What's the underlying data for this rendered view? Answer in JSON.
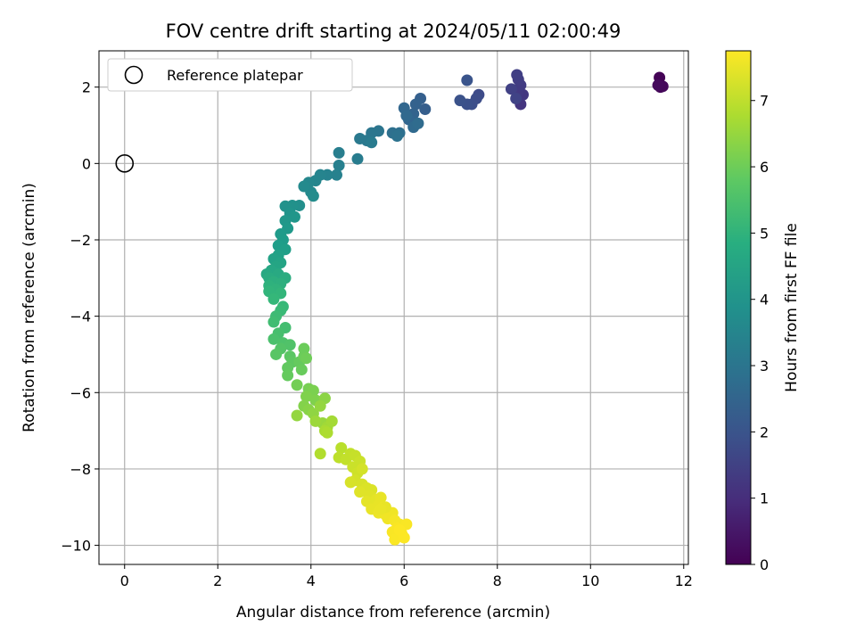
{
  "chart_data": {
    "type": "scatter",
    "title": "FOV centre drift starting at 2024/05/11 02:00:49",
    "xlabel": "Angular distance from reference (arcmin)",
    "ylabel": "Rotation from reference (arcmin)",
    "xlim": [
      -0.55,
      12.1
    ],
    "ylim": [
      -10.5,
      2.95
    ],
    "xticks": [
      0,
      2,
      4,
      6,
      8,
      10,
      12
    ],
    "yticks": [
      -10,
      -8,
      -6,
      -4,
      -2,
      0,
      2
    ],
    "grid": true,
    "legend": {
      "placement": "top-left",
      "entries": [
        {
          "label": "Reference platepar",
          "marker": "open-circle"
        }
      ]
    },
    "reference_point": {
      "x": 0,
      "y": 0
    },
    "colorbar": {
      "label": "Hours from first FF file",
      "min": 0,
      "max": 7.75,
      "ticks": [
        0,
        1,
        2,
        3,
        4,
        5,
        6,
        7
      ],
      "colormap": "viridis"
    },
    "points": [
      {
        "x": 11.48,
        "y": 2.25,
        "c": 0.05
      },
      {
        "x": 11.5,
        "y": 2.0,
        "c": 0.1
      },
      {
        "x": 11.55,
        "y": 2.02,
        "c": 0.15
      },
      {
        "x": 11.45,
        "y": 2.05,
        "c": 0.2
      },
      {
        "x": 8.5,
        "y": 1.55,
        "c": 1.2
      },
      {
        "x": 8.55,
        "y": 1.8,
        "c": 1.25
      },
      {
        "x": 8.45,
        "y": 1.9,
        "c": 1.3
      },
      {
        "x": 8.5,
        "y": 2.05,
        "c": 1.35
      },
      {
        "x": 8.45,
        "y": 2.2,
        "c": 1.4
      },
      {
        "x": 8.42,
        "y": 2.32,
        "c": 1.45
      },
      {
        "x": 8.3,
        "y": 1.95,
        "c": 1.5
      },
      {
        "x": 8.4,
        "y": 1.7,
        "c": 1.55
      },
      {
        "x": 7.6,
        "y": 1.8,
        "c": 1.75
      },
      {
        "x": 7.55,
        "y": 1.7,
        "c": 1.8
      },
      {
        "x": 7.45,
        "y": 1.55,
        "c": 1.85
      },
      {
        "x": 7.35,
        "y": 1.55,
        "c": 1.9
      },
      {
        "x": 7.2,
        "y": 1.65,
        "c": 1.95
      },
      {
        "x": 7.35,
        "y": 2.18,
        "c": 2.0
      },
      {
        "x": 6.45,
        "y": 1.42,
        "c": 2.3
      },
      {
        "x": 6.35,
        "y": 1.7,
        "c": 2.35
      },
      {
        "x": 6.25,
        "y": 1.55,
        "c": 2.4
      },
      {
        "x": 6.2,
        "y": 1.3,
        "c": 2.45
      },
      {
        "x": 6.1,
        "y": 1.15,
        "c": 2.5
      },
      {
        "x": 6.0,
        "y": 1.45,
        "c": 2.55
      },
      {
        "x": 6.05,
        "y": 1.25,
        "c": 2.6
      },
      {
        "x": 6.2,
        "y": 0.95,
        "c": 2.65
      },
      {
        "x": 6.3,
        "y": 1.05,
        "c": 2.7
      },
      {
        "x": 5.9,
        "y": 0.8,
        "c": 2.8
      },
      {
        "x": 5.75,
        "y": 0.8,
        "c": 2.85
      },
      {
        "x": 5.85,
        "y": 0.72,
        "c": 2.9
      },
      {
        "x": 5.45,
        "y": 0.85,
        "c": 3.0
      },
      {
        "x": 5.3,
        "y": 0.8,
        "c": 3.05
      },
      {
        "x": 5.2,
        "y": 0.6,
        "c": 3.1
      },
      {
        "x": 5.05,
        "y": 0.65,
        "c": 3.15
      },
      {
        "x": 5.3,
        "y": 0.55,
        "c": 3.2
      },
      {
        "x": 5.0,
        "y": 0.12,
        "c": 3.25
      },
      {
        "x": 4.6,
        "y": 0.28,
        "c": 3.3
      },
      {
        "x": 4.6,
        "y": -0.05,
        "c": 3.35
      },
      {
        "x": 4.55,
        "y": -0.3,
        "c": 3.4
      },
      {
        "x": 4.35,
        "y": -0.3,
        "c": 3.45
      },
      {
        "x": 4.2,
        "y": -0.3,
        "c": 3.5
      },
      {
        "x": 4.1,
        "y": -0.45,
        "c": 3.55
      },
      {
        "x": 3.95,
        "y": -0.5,
        "c": 3.6
      },
      {
        "x": 4.0,
        "y": -0.75,
        "c": 3.65
      },
      {
        "x": 3.85,
        "y": -0.6,
        "c": 3.7
      },
      {
        "x": 4.05,
        "y": -0.85,
        "c": 3.75
      },
      {
        "x": 3.75,
        "y": -1.1,
        "c": 3.85
      },
      {
        "x": 3.6,
        "y": -1.1,
        "c": 3.9
      },
      {
        "x": 3.45,
        "y": -1.12,
        "c": 3.95
      },
      {
        "x": 3.55,
        "y": -1.3,
        "c": 4.0
      },
      {
        "x": 3.65,
        "y": -1.4,
        "c": 4.05
      },
      {
        "x": 3.45,
        "y": -1.5,
        "c": 4.1
      },
      {
        "x": 3.5,
        "y": -1.7,
        "c": 4.15
      },
      {
        "x": 3.35,
        "y": -1.85,
        "c": 4.2
      },
      {
        "x": 3.4,
        "y": -2.0,
        "c": 4.25
      },
      {
        "x": 3.3,
        "y": -2.15,
        "c": 4.3
      },
      {
        "x": 3.45,
        "y": -2.25,
        "c": 4.35
      },
      {
        "x": 3.3,
        "y": -2.4,
        "c": 4.4
      },
      {
        "x": 3.2,
        "y": -2.5,
        "c": 4.45
      },
      {
        "x": 3.35,
        "y": -2.6,
        "c": 4.5
      },
      {
        "x": 3.25,
        "y": -2.7,
        "c": 4.55
      },
      {
        "x": 3.15,
        "y": -2.8,
        "c": 4.6
      },
      {
        "x": 3.05,
        "y": -2.9,
        "c": 4.65
      },
      {
        "x": 3.3,
        "y": -2.9,
        "c": 4.7
      },
      {
        "x": 3.1,
        "y": -3.0,
        "c": 4.75
      },
      {
        "x": 3.45,
        "y": -3.0,
        "c": 4.8
      },
      {
        "x": 3.2,
        "y": -3.1,
        "c": 4.85
      },
      {
        "x": 3.35,
        "y": -3.15,
        "c": 4.9
      },
      {
        "x": 3.1,
        "y": -3.2,
        "c": 4.95
      },
      {
        "x": 3.25,
        "y": -3.3,
        "c": 5.0
      },
      {
        "x": 3.1,
        "y": -3.35,
        "c": 5.05
      },
      {
        "x": 3.35,
        "y": -3.4,
        "c": 5.1
      },
      {
        "x": 3.2,
        "y": -3.55,
        "c": 5.15
      },
      {
        "x": 3.4,
        "y": -3.75,
        "c": 5.2
      },
      {
        "x": 3.35,
        "y": -3.85,
        "c": 5.25
      },
      {
        "x": 3.25,
        "y": -4.0,
        "c": 5.3
      },
      {
        "x": 3.2,
        "y": -4.15,
        "c": 5.35
      },
      {
        "x": 3.45,
        "y": -4.3,
        "c": 5.4
      },
      {
        "x": 3.3,
        "y": -4.45,
        "c": 5.45
      },
      {
        "x": 3.2,
        "y": -4.6,
        "c": 5.5
      },
      {
        "x": 3.4,
        "y": -4.7,
        "c": 5.55
      },
      {
        "x": 3.55,
        "y": -4.75,
        "c": 5.6
      },
      {
        "x": 3.35,
        "y": -4.85,
        "c": 5.65
      },
      {
        "x": 3.25,
        "y": -5.0,
        "c": 5.7
      },
      {
        "x": 3.55,
        "y": -5.05,
        "c": 5.75
      },
      {
        "x": 3.6,
        "y": -5.2,
        "c": 5.8
      },
      {
        "x": 3.5,
        "y": -5.35,
        "c": 5.85
      },
      {
        "x": 3.5,
        "y": -5.55,
        "c": 5.9
      },
      {
        "x": 3.75,
        "y": -5.2,
        "c": 5.9
      },
      {
        "x": 3.8,
        "y": -5.4,
        "c": 5.95
      },
      {
        "x": 3.85,
        "y": -4.85,
        "c": 6.0
      },
      {
        "x": 3.85,
        "y": -5.05,
        "c": 6.0
      },
      {
        "x": 3.9,
        "y": -5.1,
        "c": 6.05
      },
      {
        "x": 3.7,
        "y": -5.8,
        "c": 6.1
      },
      {
        "x": 3.95,
        "y": -5.9,
        "c": 6.15
      },
      {
        "x": 4.05,
        "y": -5.95,
        "c": 6.2
      },
      {
        "x": 3.9,
        "y": -6.1,
        "c": 6.25
      },
      {
        "x": 4.1,
        "y": -6.2,
        "c": 6.25
      },
      {
        "x": 3.85,
        "y": -6.35,
        "c": 6.3
      },
      {
        "x": 3.95,
        "y": -6.45,
        "c": 6.35
      },
      {
        "x": 4.3,
        "y": -6.15,
        "c": 6.4
      },
      {
        "x": 4.05,
        "y": -6.55,
        "c": 6.45
      },
      {
        "x": 4.2,
        "y": -6.35,
        "c": 6.5
      },
      {
        "x": 3.7,
        "y": -6.6,
        "c": 6.5
      },
      {
        "x": 4.25,
        "y": -6.8,
        "c": 6.55
      },
      {
        "x": 4.1,
        "y": -6.75,
        "c": 6.6
      },
      {
        "x": 4.35,
        "y": -6.9,
        "c": 6.65
      },
      {
        "x": 4.45,
        "y": -6.75,
        "c": 6.7
      },
      {
        "x": 4.3,
        "y": -7.0,
        "c": 6.75
      },
      {
        "x": 4.35,
        "y": -7.05,
        "c": 6.8
      },
      {
        "x": 4.2,
        "y": -7.6,
        "c": 6.85
      },
      {
        "x": 4.65,
        "y": -7.45,
        "c": 6.95
      },
      {
        "x": 4.6,
        "y": -7.7,
        "c": 7.0
      },
      {
        "x": 4.85,
        "y": -7.6,
        "c": 7.05
      },
      {
        "x": 4.75,
        "y": -7.75,
        "c": 7.05
      },
      {
        "x": 4.95,
        "y": -7.65,
        "c": 7.1
      },
      {
        "x": 5.05,
        "y": -7.8,
        "c": 7.15
      },
      {
        "x": 4.9,
        "y": -7.95,
        "c": 7.15
      },
      {
        "x": 5.0,
        "y": -8.1,
        "c": 7.2
      },
      {
        "x": 5.1,
        "y": -8.0,
        "c": 7.25
      },
      {
        "x": 4.95,
        "y": -8.3,
        "c": 7.25
      },
      {
        "x": 5.1,
        "y": -8.4,
        "c": 7.3
      },
      {
        "x": 4.85,
        "y": -8.35,
        "c": 7.3
      },
      {
        "x": 5.2,
        "y": -8.5,
        "c": 7.35
      },
      {
        "x": 5.3,
        "y": -8.55,
        "c": 7.35
      },
      {
        "x": 5.05,
        "y": -8.6,
        "c": 7.4
      },
      {
        "x": 5.25,
        "y": -8.7,
        "c": 7.4
      },
      {
        "x": 5.2,
        "y": -8.85,
        "c": 7.45
      },
      {
        "x": 5.4,
        "y": -8.8,
        "c": 7.45
      },
      {
        "x": 5.5,
        "y": -8.75,
        "c": 7.5
      },
      {
        "x": 5.45,
        "y": -8.95,
        "c": 7.5
      },
      {
        "x": 5.3,
        "y": -9.05,
        "c": 7.5
      },
      {
        "x": 5.55,
        "y": -9.0,
        "c": 7.55
      },
      {
        "x": 5.45,
        "y": -9.15,
        "c": 7.55
      },
      {
        "x": 5.6,
        "y": -9.2,
        "c": 7.6
      },
      {
        "x": 5.75,
        "y": -9.15,
        "c": 7.6
      },
      {
        "x": 5.65,
        "y": -9.3,
        "c": 7.6
      },
      {
        "x": 5.8,
        "y": -9.35,
        "c": 7.65
      },
      {
        "x": 5.9,
        "y": -9.45,
        "c": 7.65
      },
      {
        "x": 5.85,
        "y": -9.55,
        "c": 7.7
      },
      {
        "x": 6.05,
        "y": -9.45,
        "c": 7.7
      },
      {
        "x": 5.75,
        "y": -9.65,
        "c": 7.7
      },
      {
        "x": 5.95,
        "y": -9.7,
        "c": 7.72
      },
      {
        "x": 5.8,
        "y": -9.85,
        "c": 7.72
      },
      {
        "x": 6.0,
        "y": -9.8,
        "c": 7.74
      },
      {
        "x": 5.9,
        "y": -9.6,
        "c": 7.74
      },
      {
        "x": 5.6,
        "y": -9.0,
        "c": 7.5
      },
      {
        "x": 5.5,
        "y": -9.05,
        "c": 7.52
      }
    ]
  }
}
